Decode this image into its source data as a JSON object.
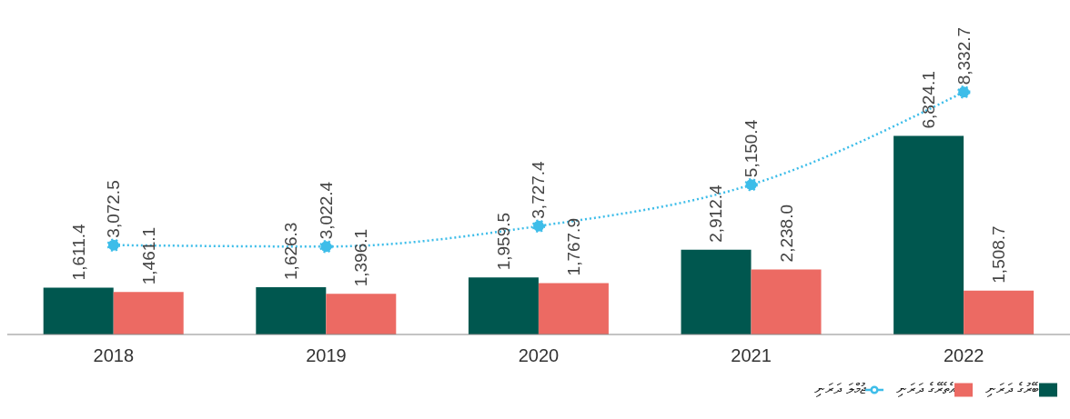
{
  "chart_data": {
    "type": "bar",
    "categories": [
      "2018",
      "2019",
      "2020",
      "2021",
      "2022"
    ],
    "series": [
      {
        "name": "ބޭރުގެ ދަރަނި",
        "color": "#00574f",
        "values": [
          1611.4,
          1626.3,
          1959.5,
          2912.4,
          6824.1
        ],
        "value_labels": [
          "1,611.4",
          "1,626.3",
          "1,959.5",
          "2,912.4",
          "6,824.1"
        ]
      },
      {
        "name": "އެތެރޭގެ ދަރަނި",
        "color": "#ec6a63",
        "values": [
          1461.1,
          1396.1,
          1767.9,
          2238.0,
          1508.7
        ],
        "value_labels": [
          "1,461.1",
          "1,396.1",
          "1,767.9",
          "2,238.0",
          "1,508.7"
        ]
      },
      {
        "name": "ޖުމްލަ ދަރަނި",
        "type": "line",
        "color": "#3dbde9",
        "values": [
          3072.5,
          3022.4,
          3727.4,
          5150.4,
          8332.7
        ],
        "value_labels": [
          "3,072.5",
          "3,022.4",
          "3,727.4",
          "5,150.4",
          "8,332.7"
        ],
        "marker": "circle",
        "line_style": "dotted"
      }
    ],
    "legend": "bottom right"
  }
}
